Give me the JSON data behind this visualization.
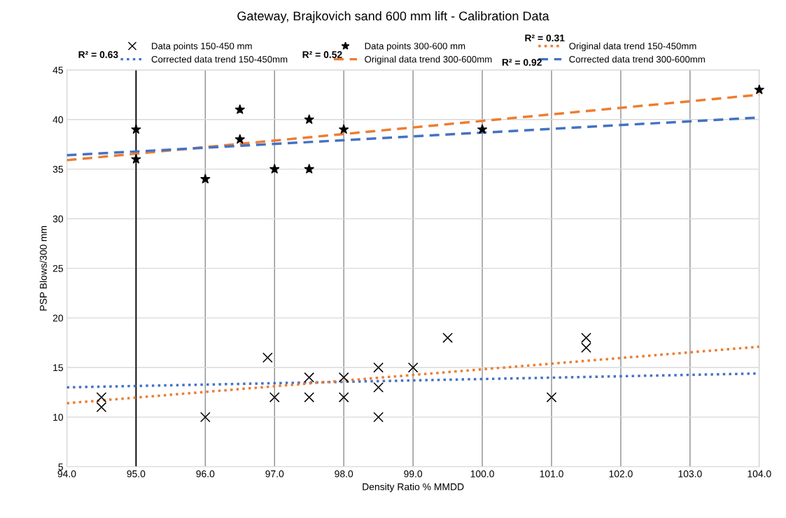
{
  "chart_data": {
    "type": "scatter",
    "title": "Gateway, Brajkovich sand 600 mm lift - Calibration Data",
    "xlabel": "Density Ratio % MMDD",
    "ylabel": "PSP Blows/300 mm",
    "xlim": [
      94,
      104
    ],
    "xticks": [
      {
        "value": 94,
        "label": "94.0"
      },
      {
        "value": 95,
        "label": "95.0"
      },
      {
        "value": 96,
        "label": "96.0"
      },
      {
        "value": 97,
        "label": "97.0"
      },
      {
        "value": 98,
        "label": "98.0"
      },
      {
        "value": 99,
        "label": "99.0"
      },
      {
        "value": 100,
        "label": "100.0"
      },
      {
        "value": 101,
        "label": "101.0"
      },
      {
        "value": 102,
        "label": "102.0"
      },
      {
        "value": 103,
        "label": "103.0"
      },
      {
        "value": 104,
        "label": "104.0"
      }
    ],
    "ylim": [
      5,
      45
    ],
    "yticks": [
      5,
      10,
      15,
      20,
      25,
      30,
      35,
      40,
      45
    ],
    "grid": true,
    "legend": "top",
    "ref_lines": [
      {
        "axis": "x",
        "value": 95,
        "color": "#000000"
      }
    ],
    "annotations": [
      "R² = 0.31",
      "R² = 0.63",
      "R² = 0.52",
      "R² = 0.92"
    ],
    "series": [
      {
        "name": "Data points 150-450 mm",
        "type": "scatter",
        "marker": "cross",
        "color": "#000000",
        "x": [
          94.5,
          94.5,
          96,
          96.9,
          97,
          97.5,
          97.5,
          98,
          98,
          98.5,
          98.5,
          98.5,
          99,
          99.5,
          101,
          101.5,
          101.5
        ],
        "values": [
          12,
          11,
          10,
          16,
          12,
          14,
          12,
          14,
          12,
          15,
          13,
          10,
          15,
          18,
          12,
          18,
          17
        ]
      },
      {
        "name": "Corrected data trend 150-450mm",
        "type": "line",
        "marker": "none",
        "line_style": "dotted",
        "color": "#4472c4",
        "x": [
          94,
          104
        ],
        "values": [
          13.0,
          14.4
        ]
      },
      {
        "name": "Data points 300-600 mm",
        "type": "scatter",
        "marker": "star",
        "color": "#000000",
        "x": [
          95,
          95,
          96,
          96.5,
          96.5,
          97,
          97.5,
          97.5,
          98,
          100,
          104
        ],
        "values": [
          39,
          36,
          34,
          41,
          38,
          35,
          40,
          35,
          39,
          39,
          43
        ]
      },
      {
        "name": "Original data trend 300-600mm",
        "type": "line",
        "marker": "none",
        "line_style": "dashed",
        "color": "#ed7d31",
        "x": [
          94,
          104
        ],
        "values": [
          35.9,
          42.5
        ]
      },
      {
        "name": "Original data trend 150-450mm",
        "type": "line",
        "marker": "none",
        "line_style": "dotted",
        "color": "#ed7d31",
        "x": [
          94,
          104
        ],
        "values": [
          11.4,
          17.1
        ]
      },
      {
        "name": "Corrected data trend 300-600mm",
        "type": "line",
        "marker": "none",
        "line_style": "dashed",
        "color": "#4472c4",
        "x": [
          94,
          104
        ],
        "values": [
          36.4,
          40.2
        ]
      }
    ]
  }
}
